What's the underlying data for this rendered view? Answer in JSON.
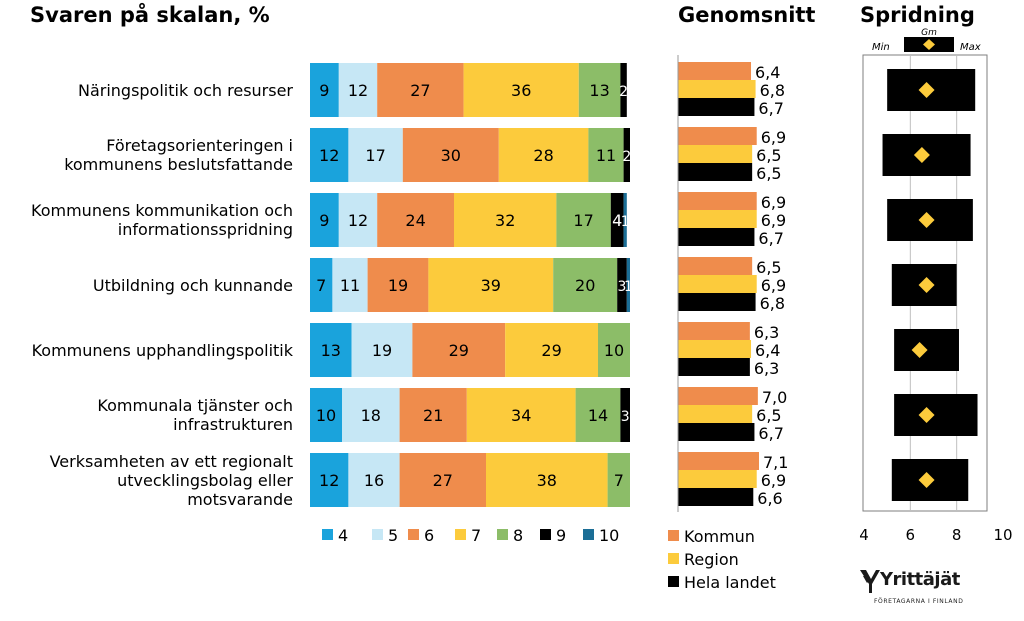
{
  "headings": {
    "scale": "Svaren på skalan, %",
    "mean": "Genomsnitt",
    "spread": "Spridning"
  },
  "categories": [
    "Näringspolitik och resurser",
    "Företagsorienteringen i kommunens beslutsfattande",
    "Kommunens kommunikation och informationsspridning",
    "Utbildning och kunnande",
    "Kommunens upphandlingspolitik",
    "Kommunala tjänster och infrastrukturen",
    "Verksamheten av ett regionalt utvecklingsbolag eller motsvarande"
  ],
  "category_lines": [
    [
      "Näringspolitik och resurser"
    ],
    [
      "Företagsorienteringen i",
      "kommunens beslutsfattande"
    ],
    [
      "Kommunens kommunikation och",
      "informationsspridning"
    ],
    [
      "Utbildning och kunnande"
    ],
    [
      "Kommunens upphandlingspolitik"
    ],
    [
      "Kommunala tjänster och",
      "infrastrukturen"
    ],
    [
      "Verksamheten av ett regionalt",
      "utvecklingsbolag eller",
      "motsvarande"
    ]
  ],
  "chart_data": [
    {
      "type": "bar",
      "stacked": true,
      "orientation": "horizontal",
      "title": "Svaren på skalan, %",
      "categories": [
        "Näringspolitik och resurser",
        "Företagsorienteringen i kommunens beslutsfattande",
        "Kommunens kommunikation och informationsspridning",
        "Utbildning och kunnande",
        "Kommunens upphandlingspolitik",
        "Kommunala tjänster och infrastrukturen",
        "Verksamheten av ett regionalt utvecklingsbolag eller motsvarande"
      ],
      "series": [
        {
          "name": "4",
          "color": "#1aa3dc",
          "values": [
            9,
            12,
            9,
            7,
            13,
            10,
            12
          ]
        },
        {
          "name": "5",
          "color": "#c6e7f5",
          "values": [
            12,
            17,
            12,
            11,
            19,
            18,
            16
          ]
        },
        {
          "name": "6",
          "color": "#ef8c4c",
          "values": [
            27,
            30,
            24,
            19,
            29,
            21,
            27
          ]
        },
        {
          "name": "7",
          "color": "#fccb3c",
          "values": [
            36,
            28,
            32,
            39,
            29,
            34,
            38
          ]
        },
        {
          "name": "8",
          "color": "#8cbd68",
          "values": [
            13,
            11,
            17,
            20,
            10,
            14,
            7
          ]
        },
        {
          "name": "9",
          "color": "#000000",
          "values": [
            2,
            2,
            4,
            3,
            0,
            3,
            0
          ]
        },
        {
          "name": "10",
          "color": "#1b6e96",
          "values": [
            0,
            0,
            1,
            1,
            0,
            0,
            0
          ]
        }
      ],
      "label_color_light": "#000000",
      "label_color_dark": "#ffffff",
      "legend_position": "bottom",
      "xlim": [
        0,
        100
      ]
    },
    {
      "type": "bar",
      "orientation": "horizontal",
      "title": "Genomsnitt",
      "categories": [
        "Näringspolitik och resurser",
        "Företagsorienteringen i kommunens beslutsfattande",
        "Kommunens kommunikation och informationsspridning",
        "Utbildning och kunnande",
        "Kommunens upphandlingspolitik",
        "Kommunala tjänster och infrastrukturen",
        "Verksamheten av ett regionalt utvecklingsbolag eller motsvarande"
      ],
      "series": [
        {
          "name": "Kommun",
          "color": "#ef8c4c",
          "values": [
            6.4,
            6.9,
            6.9,
            6.5,
            6.3,
            7.0,
            7.1
          ]
        },
        {
          "name": "Region",
          "color": "#fccb3c",
          "values": [
            6.8,
            6.5,
            6.9,
            6.9,
            6.4,
            6.5,
            6.9
          ]
        },
        {
          "name": "Hela landet",
          "color": "#000000",
          "values": [
            6.7,
            6.5,
            6.7,
            6.8,
            6.3,
            6.7,
            6.6
          ]
        }
      ],
      "value_labels": [
        [
          "6,4",
          "6,8",
          "6,7"
        ],
        [
          "6,9",
          "6,5",
          "6,5"
        ],
        [
          "6,9",
          "6,9",
          "6,7"
        ],
        [
          "6,5",
          "6,9",
          "6,8"
        ],
        [
          "6,3",
          "6,4",
          "6,3"
        ],
        [
          "7,0",
          "6,5",
          "6,7"
        ],
        [
          "7,1",
          "6,9",
          "6,6"
        ]
      ],
      "xlim": [
        0,
        7.1
      ],
      "legend_position": "bottom"
    },
    {
      "type": "range",
      "title": "Spridning",
      "categories": [
        "Näringspolitik och resurser",
        "Företagsorienteringen i kommunens beslutsfattande",
        "Kommunens kommunikation och informationsspridning",
        "Utbildning och kunnande",
        "Kommunens upphandlingspolitik",
        "Kommunala tjänster och infrastrukturen",
        "Verksamheten av ett regionalt utvecklingsbolag eller motsvarande"
      ],
      "min": [
        5.0,
        4.8,
        5.0,
        5.2,
        5.3,
        5.3,
        5.2
      ],
      "max": [
        8.8,
        8.6,
        8.7,
        8.0,
        8.1,
        8.9,
        8.5
      ],
      "mean": [
        6.7,
        6.5,
        6.7,
        6.7,
        6.4,
        6.7,
        6.7
      ],
      "range_color": "#000000",
      "mean_color": "#fccb3c",
      "xlim": [
        4,
        10
      ],
      "xticks": [
        "4",
        "6",
        "8",
        "10"
      ],
      "grid": true,
      "legend": {
        "min": "Min",
        "mean": "Gm",
        "max": "Max"
      }
    }
  ],
  "logo": {
    "name": "Yrittäjät",
    "tagline": "FÖRETAGARNA I FINLAND"
  }
}
